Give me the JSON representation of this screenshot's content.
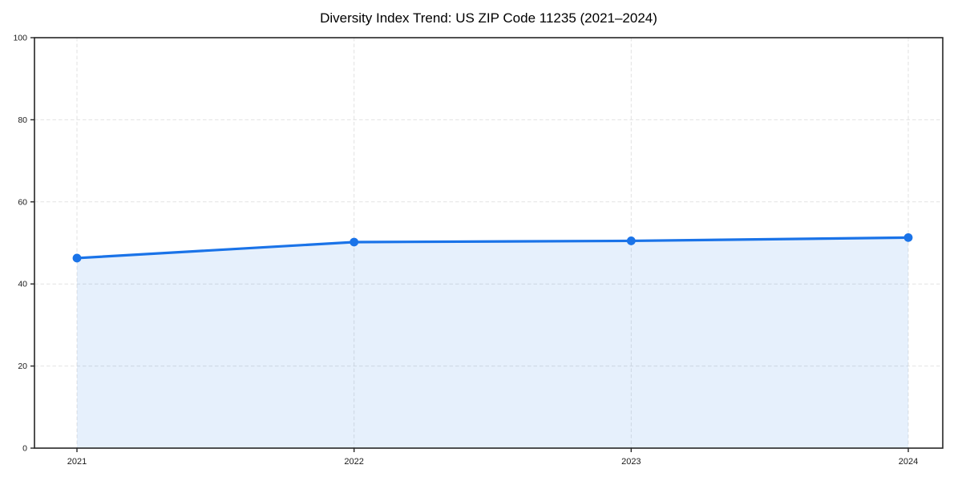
{
  "page": {
    "background": "#ffffff"
  },
  "chart_data": {
    "type": "area",
    "title": "Diversity Index Trend: US ZIP Code 11235 (2021–2024)",
    "x": [
      2021,
      2022,
      2023,
      2024
    ],
    "xtick_labels": [
      "2021",
      "2022",
      "2023",
      "2024"
    ],
    "series": [
      {
        "name": "Diversity Index",
        "values": [
          46.3,
          50.2,
          50.5,
          51.3
        ]
      }
    ],
    "xlabel": "",
    "ylabel": "",
    "ylim": [
      0,
      100
    ],
    "yticks": [
      0,
      20,
      40,
      60,
      80,
      100
    ],
    "grid": true,
    "grid_style": "dashed",
    "legend": "none",
    "marker": "circle",
    "colors": {
      "line": "#1a73e8",
      "marker": "#1a73e8",
      "fill": "rgba(26,115,232,0.11)",
      "grid": "#e2e2e2",
      "axis": "#262626",
      "tick_text": "#1a1a1a",
      "title_text": "#000000",
      "background": "#ffffff"
    }
  }
}
